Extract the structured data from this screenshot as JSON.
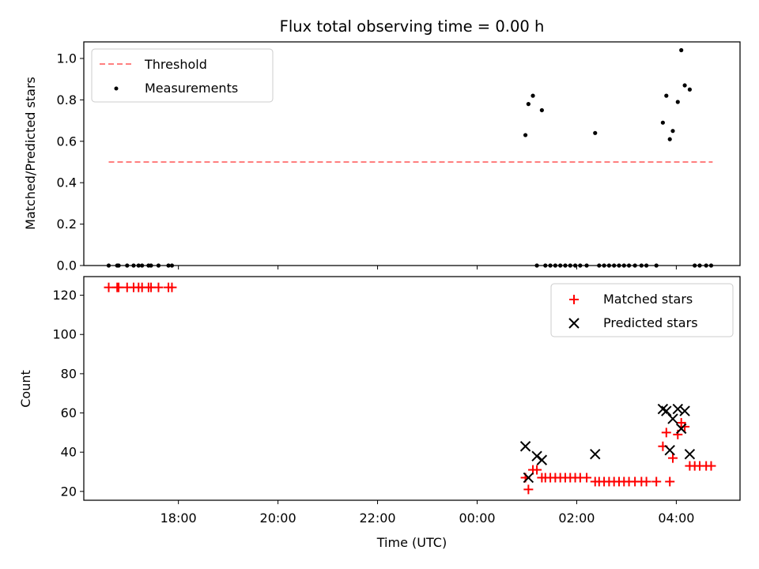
{
  "figure": {
    "title": "Flux total observing time = 0.00 h",
    "xlabel": "Time (UTC)"
  },
  "colors": {
    "threshold": "#ff7f7f",
    "measurements": "#000000",
    "matched": "#ff0000",
    "predicted": "#000000"
  },
  "chart_data": [
    {
      "type": "scatter",
      "panel": "top",
      "ylabel": "Matched/Predicted stars",
      "x_unit": "hours since 00:00 UTC",
      "xlim": [
        -7.9,
        5.28
      ],
      "ylim": [
        0,
        1.08
      ],
      "yticks": [
        0.0,
        0.2,
        0.4,
        0.6,
        0.8,
        1.0
      ],
      "ytick_labels": [
        "0.0",
        "0.2",
        "0.4",
        "0.6",
        "0.8",
        "1.0"
      ],
      "legend_position": "upper left",
      "threshold": {
        "name": "Threshold",
        "y": 0.5,
        "x_range": [
          -7.4,
          4.73
        ]
      },
      "series": [
        {
          "name": "Measurements",
          "points": [
            [
              -7.4,
              0
            ],
            [
              -7.23,
              0
            ],
            [
              -7.2,
              0
            ],
            [
              -7.03,
              0
            ],
            [
              -6.9,
              0
            ],
            [
              -6.8,
              0
            ],
            [
              -6.73,
              0
            ],
            [
              -6.6,
              0
            ],
            [
              -6.55,
              0
            ],
            [
              -6.4,
              0
            ],
            [
              -6.2,
              0
            ],
            [
              -6.13,
              0
            ],
            [
              0.97,
              0.63
            ],
            [
              1.03,
              0.78
            ],
            [
              1.12,
              0.82
            ],
            [
              1.2,
              0
            ],
            [
              1.3,
              0.75
            ],
            [
              1.37,
              0
            ],
            [
              1.47,
              0
            ],
            [
              1.57,
              0
            ],
            [
              1.67,
              0
            ],
            [
              1.77,
              0
            ],
            [
              1.87,
              0
            ],
            [
              1.97,
              0
            ],
            [
              2.07,
              0
            ],
            [
              2.2,
              0
            ],
            [
              2.37,
              0.64
            ],
            [
              2.45,
              0
            ],
            [
              2.55,
              0
            ],
            [
              2.65,
              0
            ],
            [
              2.75,
              0
            ],
            [
              2.85,
              0
            ],
            [
              2.95,
              0
            ],
            [
              3.05,
              0
            ],
            [
              3.17,
              0
            ],
            [
              3.3,
              0
            ],
            [
              3.4,
              0
            ],
            [
              3.6,
              0
            ],
            [
              3.73,
              0.69
            ],
            [
              3.8,
              0.82
            ],
            [
              3.87,
              0.61
            ],
            [
              3.93,
              0.65
            ],
            [
              4.03,
              0.79
            ],
            [
              4.1,
              1.04
            ],
            [
              4.17,
              0.87
            ],
            [
              4.27,
              0.85
            ],
            [
              4.37,
              0
            ],
            [
              4.47,
              0
            ],
            [
              4.6,
              0
            ],
            [
              4.7,
              0
            ]
          ]
        }
      ]
    },
    {
      "type": "scatter",
      "panel": "bottom",
      "ylabel": "Count",
      "x_unit": "hours since 00:00 UTC",
      "xlim": [
        -7.9,
        5.28
      ],
      "ylim": [
        15.5,
        129.5
      ],
      "yticks": [
        20,
        40,
        60,
        80,
        100,
        120
      ],
      "ytick_labels": [
        "20",
        "40",
        "60",
        "80",
        "100",
        "120"
      ],
      "xticks": [
        -6,
        -4,
        -2,
        0,
        2,
        4
      ],
      "xtick_labels": [
        "18:00",
        "20:00",
        "22:00",
        "00:00",
        "02:00",
        "04:00"
      ],
      "legend_position": "upper right",
      "series": [
        {
          "name": "Matched stars",
          "points": [
            [
              -7.4,
              124
            ],
            [
              -7.23,
              124
            ],
            [
              -7.2,
              124
            ],
            [
              -7.03,
              124
            ],
            [
              -6.9,
              124
            ],
            [
              -6.8,
              124
            ],
            [
              -6.73,
              124
            ],
            [
              -6.6,
              124
            ],
            [
              -6.55,
              124
            ],
            [
              -6.4,
              124
            ],
            [
              -6.2,
              124
            ],
            [
              -6.13,
              124
            ],
            [
              0.97,
              27
            ],
            [
              1.03,
              21
            ],
            [
              1.12,
              31
            ],
            [
              1.2,
              31
            ],
            [
              1.3,
              27
            ],
            [
              1.37,
              27
            ],
            [
              1.47,
              27
            ],
            [
              1.57,
              27
            ],
            [
              1.67,
              27
            ],
            [
              1.77,
              27
            ],
            [
              1.87,
              27
            ],
            [
              1.97,
              27
            ],
            [
              2.07,
              27
            ],
            [
              2.2,
              27
            ],
            [
              2.37,
              25
            ],
            [
              2.45,
              25
            ],
            [
              2.55,
              25
            ],
            [
              2.65,
              25
            ],
            [
              2.75,
              25
            ],
            [
              2.85,
              25
            ],
            [
              2.95,
              25
            ],
            [
              3.05,
              25
            ],
            [
              3.17,
              25
            ],
            [
              3.3,
              25
            ],
            [
              3.4,
              25
            ],
            [
              3.6,
              25
            ],
            [
              3.73,
              43
            ],
            [
              3.8,
              50
            ],
            [
              3.87,
              25
            ],
            [
              3.93,
              37
            ],
            [
              4.03,
              49
            ],
            [
              4.1,
              55
            ],
            [
              4.17,
              53
            ],
            [
              4.27,
              33
            ],
            [
              4.37,
              33
            ],
            [
              4.47,
              33
            ],
            [
              4.6,
              33
            ],
            [
              4.7,
              33
            ]
          ]
        },
        {
          "name": "Predicted stars",
          "points": [
            [
              0.97,
              43
            ],
            [
              1.03,
              27
            ],
            [
              1.2,
              38
            ],
            [
              1.3,
              36
            ],
            [
              2.37,
              39
            ],
            [
              3.73,
              62
            ],
            [
              3.8,
              61
            ],
            [
              3.93,
              57
            ],
            [
              3.87,
              41
            ],
            [
              4.03,
              62
            ],
            [
              4.1,
              52
            ],
            [
              4.17,
              61
            ],
            [
              4.27,
              39
            ]
          ]
        }
      ]
    }
  ]
}
